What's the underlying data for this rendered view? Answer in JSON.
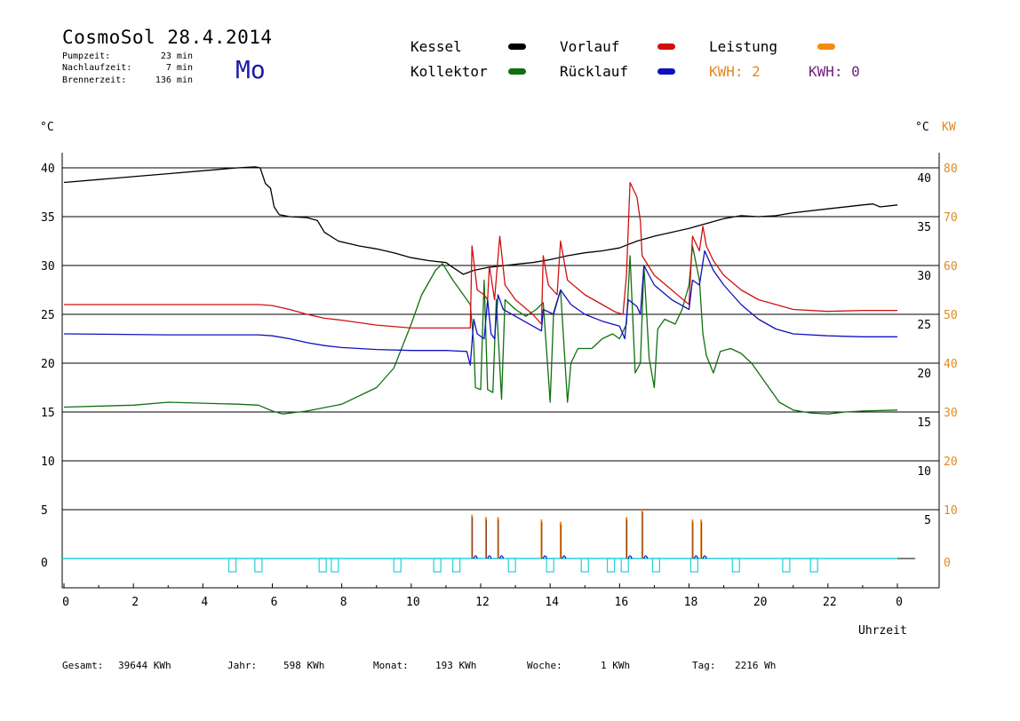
{
  "header": {
    "title": "CosmoSol 28.4.2014",
    "day": "Mo",
    "stats": [
      {
        "label": "Pumpzeit:",
        "value": "23 min"
      },
      {
        "label": "Nachlaufzeit:",
        "value": "7 min"
      },
      {
        "label": "Brennerzeit:",
        "value": "136 min"
      }
    ]
  },
  "legend": {
    "kessel": "Kessel",
    "kollektor": "Kollektor",
    "vorlauf": "Vorlauf",
    "ruecklauf": "Rücklauf",
    "leistung": "Leistung",
    "kwh1": "KWH: 2",
    "kwh2": "KWH: 0"
  },
  "colors": {
    "kessel": "#000000",
    "kollektor": "#107010",
    "vorlauf": "#d01010",
    "ruecklauf": "#1010c0",
    "leistung": "#f08c10",
    "kwh2": "#702080",
    "pump": "#20d0e0"
  },
  "axes": {
    "left_unit": "°C",
    "right_unit_c": "°C",
    "right_unit_kw": "KW",
    "xlabel": "Uhrzeit"
  },
  "footer": {
    "gesamt_label": "Gesamt:",
    "gesamt_value": "39644 KWh",
    "jahr_label": "Jahr:",
    "jahr_value": "598 KWh",
    "monat_label": "Monat:",
    "monat_value": "193 KWh",
    "woche_label": "Woche:",
    "woche_value": "1 KWh",
    "tag_label": "Tag:",
    "tag_value": "2216 Wh"
  },
  "chart_data": {
    "type": "line",
    "xlabel": "Uhrzeit",
    "ylabel": "°C",
    "xlim": [
      0,
      24
    ],
    "ylim": [
      -3,
      42
    ],
    "x_ticks": [
      "0",
      "2",
      "4",
      "6",
      "8",
      "10",
      "12",
      "14",
      "16",
      "18",
      "20",
      "22",
      "0"
    ],
    "y_ticks_left": [
      "0",
      "5",
      "10",
      "15",
      "20",
      "25",
      "30",
      "35",
      "40"
    ],
    "y_ticks_right_c": [
      "5",
      "10",
      "15",
      "20",
      "25",
      "30",
      "35",
      "40"
    ],
    "y_ticks_right_kw": [
      "0",
      "10",
      "20",
      "30",
      "40",
      "50",
      "60",
      "70",
      "80"
    ],
    "grid": true,
    "series": [
      {
        "name": "Kessel",
        "key": "kessel",
        "points": [
          [
            0,
            38.5
          ],
          [
            1,
            38.8
          ],
          [
            2,
            39.1
          ],
          [
            3,
            39.4
          ],
          [
            4,
            39.7
          ],
          [
            5,
            40
          ],
          [
            5.5,
            40.1
          ],
          [
            5.65,
            40
          ],
          [
            5.8,
            38.4
          ],
          [
            5.95,
            37.9
          ],
          [
            6.05,
            36
          ],
          [
            6.2,
            35.2
          ],
          [
            6.5,
            35
          ],
          [
            7,
            34.9
          ],
          [
            7.3,
            34.6
          ],
          [
            7.5,
            33.4
          ],
          [
            7.9,
            32.5
          ],
          [
            8.5,
            32
          ],
          [
            9,
            31.7
          ],
          [
            9.5,
            31.3
          ],
          [
            10,
            30.8
          ],
          [
            10.5,
            30.5
          ],
          [
            11,
            30.3
          ],
          [
            11.2,
            29.8
          ],
          [
            11.5,
            29.1
          ],
          [
            11.8,
            29.5
          ],
          [
            12.2,
            29.8
          ],
          [
            12.7,
            30
          ],
          [
            13.2,
            30.2
          ],
          [
            13.5,
            30.3
          ],
          [
            14,
            30.6
          ],
          [
            14.5,
            31
          ],
          [
            15,
            31.3
          ],
          [
            15.5,
            31.5
          ],
          [
            16,
            31.8
          ],
          [
            16.5,
            32.5
          ],
          [
            17,
            33
          ],
          [
            17.5,
            33.4
          ],
          [
            18,
            33.8
          ],
          [
            18.5,
            34.3
          ],
          [
            19,
            34.8
          ],
          [
            19.5,
            35.1
          ],
          [
            20,
            35
          ],
          [
            20.5,
            35.1
          ],
          [
            21,
            35.4
          ],
          [
            22,
            35.8
          ],
          [
            23,
            36.2
          ],
          [
            23.3,
            36.3
          ],
          [
            23.5,
            36.0
          ],
          [
            24,
            36.2
          ]
        ]
      },
      {
        "name": "Kollektor",
        "key": "kollektor",
        "points": [
          [
            0,
            15.5
          ],
          [
            2,
            15.7
          ],
          [
            3,
            16
          ],
          [
            5,
            15.8
          ],
          [
            5.6,
            15.7
          ],
          [
            6,
            15.1
          ],
          [
            6.3,
            14.8
          ],
          [
            7,
            15.1
          ],
          [
            8,
            15.8
          ],
          [
            9,
            17.5
          ],
          [
            9.5,
            19.5
          ],
          [
            10,
            24
          ],
          [
            10.3,
            27
          ],
          [
            10.7,
            29.5
          ],
          [
            10.9,
            30.2
          ],
          [
            11.2,
            28.5
          ],
          [
            11.5,
            27
          ],
          [
            11.7,
            26
          ],
          [
            11.8,
            22
          ],
          [
            11.85,
            17.5
          ],
          [
            12,
            17.3
          ],
          [
            12.1,
            28.5
          ],
          [
            12.2,
            17.3
          ],
          [
            12.35,
            17
          ],
          [
            12.45,
            26.5
          ],
          [
            12.6,
            16.3
          ],
          [
            12.7,
            26.5
          ],
          [
            13,
            25.5
          ],
          [
            13.3,
            24.8
          ],
          [
            13.6,
            25.5
          ],
          [
            13.8,
            26.2
          ],
          [
            14,
            16
          ],
          [
            14.1,
            25.2
          ],
          [
            14.3,
            27.5
          ],
          [
            14.5,
            16
          ],
          [
            14.6,
            20
          ],
          [
            14.8,
            21.5
          ],
          [
            15.2,
            21.5
          ],
          [
            15.5,
            22.5
          ],
          [
            15.8,
            23
          ],
          [
            16,
            22.5
          ],
          [
            16.2,
            24
          ],
          [
            16.3,
            31
          ],
          [
            16.45,
            19
          ],
          [
            16.6,
            20
          ],
          [
            16.7,
            30
          ],
          [
            16.85,
            20.5
          ],
          [
            17,
            17.5
          ],
          [
            17.1,
            23.5
          ],
          [
            17.3,
            24.5
          ],
          [
            17.6,
            24
          ],
          [
            17.8,
            25.5
          ],
          [
            18,
            28
          ],
          [
            18.1,
            32
          ],
          [
            18.3,
            28.5
          ],
          [
            18.4,
            23
          ],
          [
            18.5,
            20.8
          ],
          [
            18.7,
            19
          ],
          [
            18.9,
            21.2
          ],
          [
            19.2,
            21.5
          ],
          [
            19.5,
            21
          ],
          [
            19.8,
            20
          ],
          [
            20.2,
            18
          ],
          [
            20.6,
            16
          ],
          [
            21,
            15.2
          ],
          [
            21.5,
            14.9
          ],
          [
            22,
            14.8
          ],
          [
            22.5,
            15
          ],
          [
            23,
            15.1
          ],
          [
            24,
            15.2
          ]
        ]
      },
      {
        "name": "Vorlauf",
        "key": "vorlauf",
        "points": [
          [
            0,
            26
          ],
          [
            3,
            26
          ],
          [
            5.6,
            26
          ],
          [
            6,
            25.9
          ],
          [
            6.5,
            25.5
          ],
          [
            7,
            25
          ],
          [
            7.5,
            24.6
          ],
          [
            8,
            24.4
          ],
          [
            9,
            23.9
          ],
          [
            10,
            23.6
          ],
          [
            11,
            23.6
          ],
          [
            11.7,
            23.6
          ],
          [
            11.75,
            32
          ],
          [
            11.9,
            27.5
          ],
          [
            12.1,
            27
          ],
          [
            12.2,
            26.5
          ],
          [
            12.25,
            30
          ],
          [
            12.4,
            26.5
          ],
          [
            12.55,
            33
          ],
          [
            12.7,
            28
          ],
          [
            13,
            26.5
          ],
          [
            13.5,
            25
          ],
          [
            13.75,
            24
          ],
          [
            13.8,
            31
          ],
          [
            13.95,
            28
          ],
          [
            14.2,
            27
          ],
          [
            14.3,
            32.5
          ],
          [
            14.5,
            28.5
          ],
          [
            15,
            27
          ],
          [
            15.5,
            26
          ],
          [
            15.9,
            25.2
          ],
          [
            16.1,
            25
          ],
          [
            16.2,
            29
          ],
          [
            16.3,
            38.5
          ],
          [
            16.5,
            37
          ],
          [
            16.6,
            34.5
          ],
          [
            16.65,
            31
          ],
          [
            17,
            29
          ],
          [
            17.5,
            27.5
          ],
          [
            18,
            26
          ],
          [
            18.1,
            33
          ],
          [
            18.3,
            31.5
          ],
          [
            18.4,
            34
          ],
          [
            18.5,
            32
          ],
          [
            18.7,
            30.5
          ],
          [
            19,
            29
          ],
          [
            19.5,
            27.5
          ],
          [
            20,
            26.5
          ],
          [
            20.5,
            26
          ],
          [
            21,
            25.5
          ],
          [
            22,
            25.3
          ],
          [
            23,
            25.4
          ],
          [
            24,
            25.4
          ]
        ]
      },
      {
        "name": "Rücklauf",
        "key": "ruecklauf",
        "points": [
          [
            0,
            23
          ],
          [
            3,
            22.9
          ],
          [
            5.6,
            22.9
          ],
          [
            6,
            22.8
          ],
          [
            6.5,
            22.5
          ],
          [
            7,
            22.1
          ],
          [
            7.5,
            21.8
          ],
          [
            8,
            21.6
          ],
          [
            9,
            21.4
          ],
          [
            10,
            21.3
          ],
          [
            11,
            21.3
          ],
          [
            11.6,
            21.2
          ],
          [
            11.7,
            19.8
          ],
          [
            11.8,
            24.5
          ],
          [
            11.9,
            23
          ],
          [
            12.1,
            22.5
          ],
          [
            12.2,
            26.5
          ],
          [
            12.3,
            23
          ],
          [
            12.4,
            22.5
          ],
          [
            12.5,
            27
          ],
          [
            12.65,
            25.5
          ],
          [
            13,
            24.8
          ],
          [
            13.5,
            23.8
          ],
          [
            13.75,
            23.3
          ],
          [
            13.8,
            25.5
          ],
          [
            14.1,
            25
          ],
          [
            14.3,
            27.5
          ],
          [
            14.6,
            26
          ],
          [
            15,
            25
          ],
          [
            15.5,
            24.3
          ],
          [
            16,
            23.8
          ],
          [
            16.15,
            22.5
          ],
          [
            16.25,
            26.5
          ],
          [
            16.5,
            25.8
          ],
          [
            16.6,
            25
          ],
          [
            16.7,
            30
          ],
          [
            17,
            28
          ],
          [
            17.5,
            26.5
          ],
          [
            18,
            25.5
          ],
          [
            18.1,
            28.5
          ],
          [
            18.3,
            28
          ],
          [
            18.45,
            31.5
          ],
          [
            18.7,
            29.5
          ],
          [
            19,
            28
          ],
          [
            19.5,
            26
          ],
          [
            20,
            24.5
          ],
          [
            20.5,
            23.5
          ],
          [
            21,
            23
          ],
          [
            22,
            22.8
          ],
          [
            23,
            22.7
          ],
          [
            24,
            22.7
          ]
        ]
      }
    ],
    "leistung_spikes_hours": [
      11.75,
      12.15,
      12.5,
      13.75,
      14.3,
      16.2,
      16.65,
      18.1,
      18.35
    ],
    "leistung_spikes_kw": [
      9,
      8.5,
      8.5,
      8,
      7.5,
      8.5,
      10,
      8,
      8
    ],
    "pump_pulses_hours": [
      4.85,
      5.6,
      7.45,
      7.8,
      9.6,
      10.75,
      11.3,
      12.9,
      14.0,
      15.0,
      15.75,
      16.15,
      17.05,
      18.15,
      19.35,
      20.8,
      21.6
    ]
  }
}
